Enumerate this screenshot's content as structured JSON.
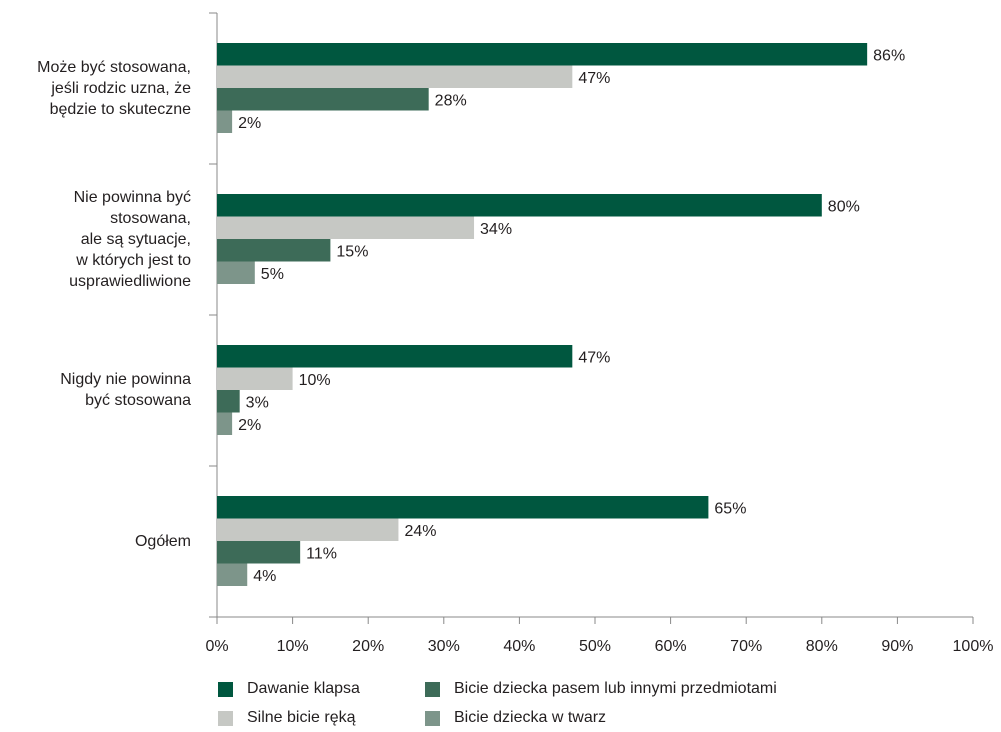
{
  "chart_data": {
    "type": "bar",
    "orientation": "horizontal",
    "title": "",
    "xlabel": "",
    "ylabel": "",
    "xlim": [
      0,
      100
    ],
    "x_ticks": [
      "0%",
      "10%",
      "20%",
      "30%",
      "40%",
      "50%",
      "60%",
      "70%",
      "80%",
      "90%",
      "100%"
    ],
    "value_suffix": "%",
    "grid": false,
    "legend_position": "bottom",
    "categories": [
      "Może być stosowana,\njeśli rodzic uzna, że\nbędzie to skuteczne",
      "Nie powinna być\nstosowana,\nale są sytuacje,\nw których jest to\nusprawiedliwione",
      "Nigdy nie powinna\nbyć stosowana",
      "Ogółem"
    ],
    "series": [
      {
        "name": "Dawanie klapsa",
        "color": "#00573f",
        "values": [
          86,
          80,
          47,
          65
        ]
      },
      {
        "name": "Silne bicie ręką",
        "color": "#c6c8c4",
        "values": [
          47,
          34,
          10,
          24
        ]
      },
      {
        "name": "Bicie dziecka pasem lub innymi przedmiotami",
        "color": "#3d6b58",
        "values": [
          28,
          15,
          3,
          11
        ]
      },
      {
        "name": "Bicie dziecka w twarz",
        "color": "#7d958a",
        "values": [
          2,
          5,
          2,
          4
        ]
      }
    ]
  }
}
